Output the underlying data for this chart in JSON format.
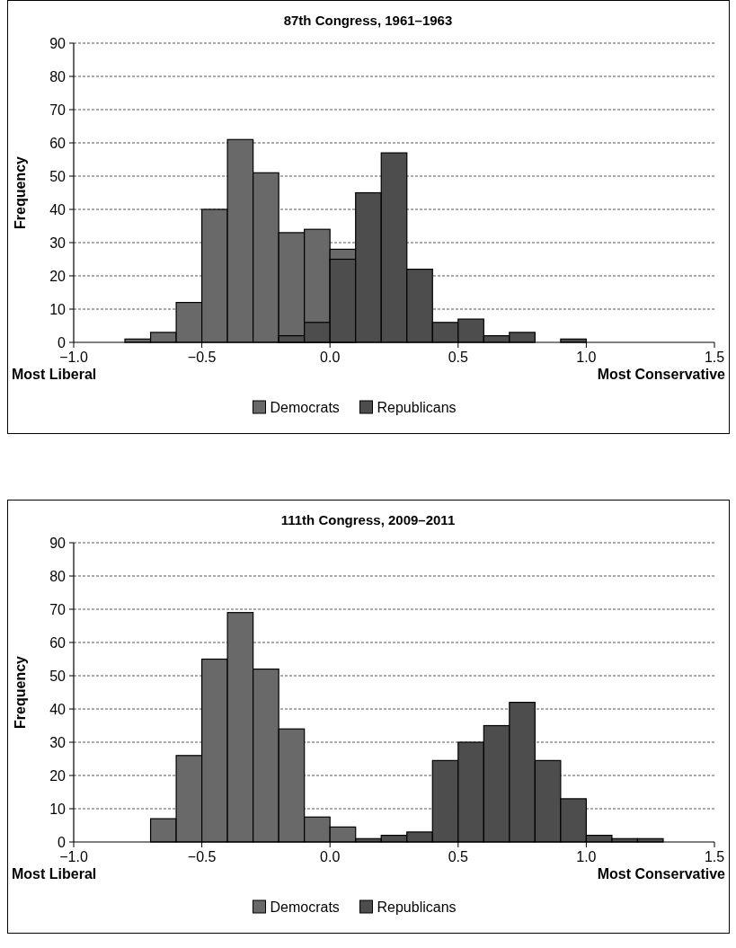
{
  "chart_data": [
    {
      "type": "histogram",
      "title": "87th Congress, 1961–1963",
      "ylabel": "Frequency",
      "annotations": [
        "Most Liberal",
        "Most Conservative"
      ],
      "bins": [
        -1.0,
        -0.9,
        -0.8,
        -0.7,
        -0.6,
        -0.5,
        -0.4,
        -0.3,
        -0.2,
        -0.1,
        0.0,
        0.1,
        0.2,
        0.3,
        0.4,
        0.5,
        0.6,
        0.7,
        0.8,
        0.9,
        1.0,
        1.1,
        1.2,
        1.3,
        1.4,
        1.5
      ],
      "series": [
        {
          "name": "Democrats",
          "color": "#696969",
          "values": [
            0,
            0,
            1,
            3,
            12,
            40,
            61,
            51,
            33,
            34,
            28,
            0,
            0,
            0,
            0,
            0,
            0,
            0,
            0,
            0,
            0,
            0,
            0,
            0,
            0
          ]
        },
        {
          "name": "Republicans",
          "color": "#4d4d4d",
          "values": [
            0,
            0,
            0,
            0,
            0,
            0,
            0,
            0,
            2,
            6,
            25,
            45,
            57,
            22,
            6,
            7,
            2,
            3,
            0,
            1,
            0,
            0,
            0,
            0,
            0
          ]
        }
      ],
      "xlim": [
        -1.0,
        1.5
      ],
      "xticks": [
        {
          "value": -1.0,
          "label": "−1.0"
        },
        {
          "value": -0.5,
          "label": "−0.5"
        },
        {
          "value": 0,
          "label": "0.0"
        },
        {
          "value": 0.5,
          "label": "0.5"
        },
        {
          "value": 1.0,
          "label": "1.0"
        },
        {
          "value": 1.5,
          "label": "1.5"
        }
      ],
      "ylim": [
        0,
        90
      ],
      "yticks": [
        0,
        10,
        20,
        30,
        40,
        50,
        60,
        70,
        80,
        90
      ],
      "grid": "y",
      "legend": "bottom"
    },
    {
      "type": "histogram",
      "title": "111th Congress, 2009–2011",
      "ylabel": "Frequency",
      "annotations": [
        "Most Liberal",
        "Most Conservative"
      ],
      "bins": [
        -1.0,
        -0.9,
        -0.8,
        -0.7,
        -0.6,
        -0.5,
        -0.4,
        -0.3,
        -0.2,
        -0.1,
        0.0,
        0.1,
        0.2,
        0.3,
        0.4,
        0.5,
        0.6,
        0.7,
        0.8,
        0.9,
        1.0,
        1.1,
        1.2,
        1.3,
        1.4,
        1.5
      ],
      "series": [
        {
          "name": "Democrats",
          "color": "#696969",
          "values": [
            0,
            0,
            0,
            7,
            26,
            55,
            69,
            52,
            34,
            7.5,
            4.5,
            0,
            0,
            0,
            0,
            0,
            0,
            0,
            0,
            0,
            0,
            0,
            0,
            0,
            0
          ]
        },
        {
          "name": "Republicans",
          "color": "#4d4d4d",
          "values": [
            0,
            0,
            0,
            0,
            0,
            0,
            0,
            0,
            0,
            0,
            0,
            1,
            2,
            3,
            24.5,
            30,
            35,
            42,
            24.5,
            13,
            2,
            1,
            1,
            0,
            0
          ]
        }
      ],
      "xlim": [
        -1.0,
        1.5
      ],
      "xticks": [
        {
          "value": -1.0,
          "label": "−1.0"
        },
        {
          "value": -0.5,
          "label": "−0.5"
        },
        {
          "value": 0,
          "label": "0.0"
        },
        {
          "value": 0.5,
          "label": "0.5"
        },
        {
          "value": 1.0,
          "label": "1.0"
        },
        {
          "value": 1.5,
          "label": "1.5"
        }
      ],
      "ylim": [
        0,
        90
      ],
      "yticks": [
        0,
        10,
        20,
        30,
        40,
        50,
        60,
        70,
        80,
        90
      ],
      "grid": "y",
      "legend": "bottom"
    }
  ]
}
